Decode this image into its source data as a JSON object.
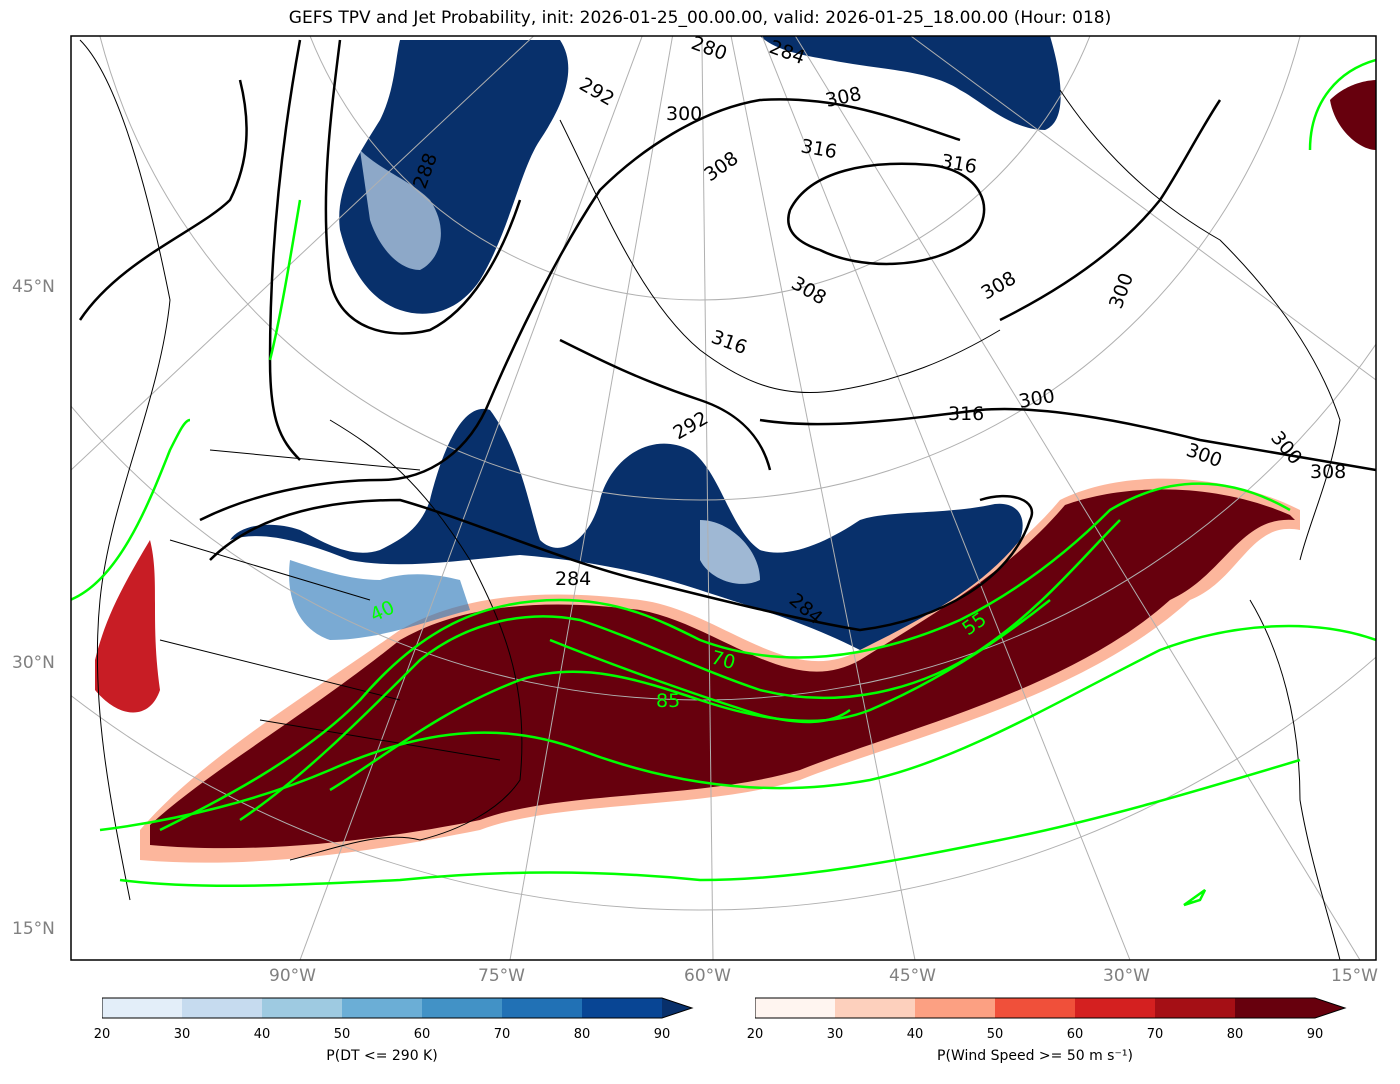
{
  "title": "GEFS TPV and Jet Probability, init: 2026-01-25_00.00.00, valid: 2026-01-25_18.00.00 (Hour: 018)",
  "lat_labels": [
    "45°N",
    "30°N",
    "15°N"
  ],
  "lon_labels": [
    "90°W",
    "75°W",
    "60°W",
    "45°W",
    "30°W",
    "15°W"
  ],
  "theta_contour_labels": [
    "292",
    "300",
    "308",
    "316",
    "316",
    "308",
    "308",
    "316",
    "300",
    "316",
    "300",
    "308",
    "300",
    "300",
    "308",
    "292",
    "284",
    "284",
    "280",
    "284",
    "288"
  ],
  "jet_contour_labels": [
    "40",
    "55",
    "70",
    "85"
  ],
  "colorbars": [
    {
      "name": "tpv",
      "label": "P(DT <= 290 K)",
      "ticks": [
        "20",
        "30",
        "40",
        "50",
        "60",
        "70",
        "80",
        "90"
      ],
      "colors": [
        "#e3eef9",
        "#c6dbef",
        "#9ecae1",
        "#6baed6",
        "#4292c6",
        "#2171b5",
        "#084594",
        "#08306b"
      ]
    },
    {
      "name": "jet",
      "label": "P(Wind Speed >= 50 m s⁻¹)",
      "ticks": [
        "20",
        "30",
        "40",
        "50",
        "60",
        "70",
        "80",
        "90"
      ],
      "colors": [
        "#fff5f0",
        "#fdd0bd",
        "#fca082",
        "#f0503a",
        "#d42020",
        "#a50f15",
        "#67000d",
        "#67000d"
      ]
    }
  ],
  "colors": {
    "tpv_dark": "#08306b",
    "tpv_mid": "#2171b5",
    "tpv_light": "#9ecae1",
    "jet_dark": "#67000d",
    "jet_mid": "#c81d25",
    "jet_light": "#fcae91",
    "jet_contour": "#00ff00",
    "theta_contour": "#000000",
    "grid": "#b0b0b0"
  }
}
